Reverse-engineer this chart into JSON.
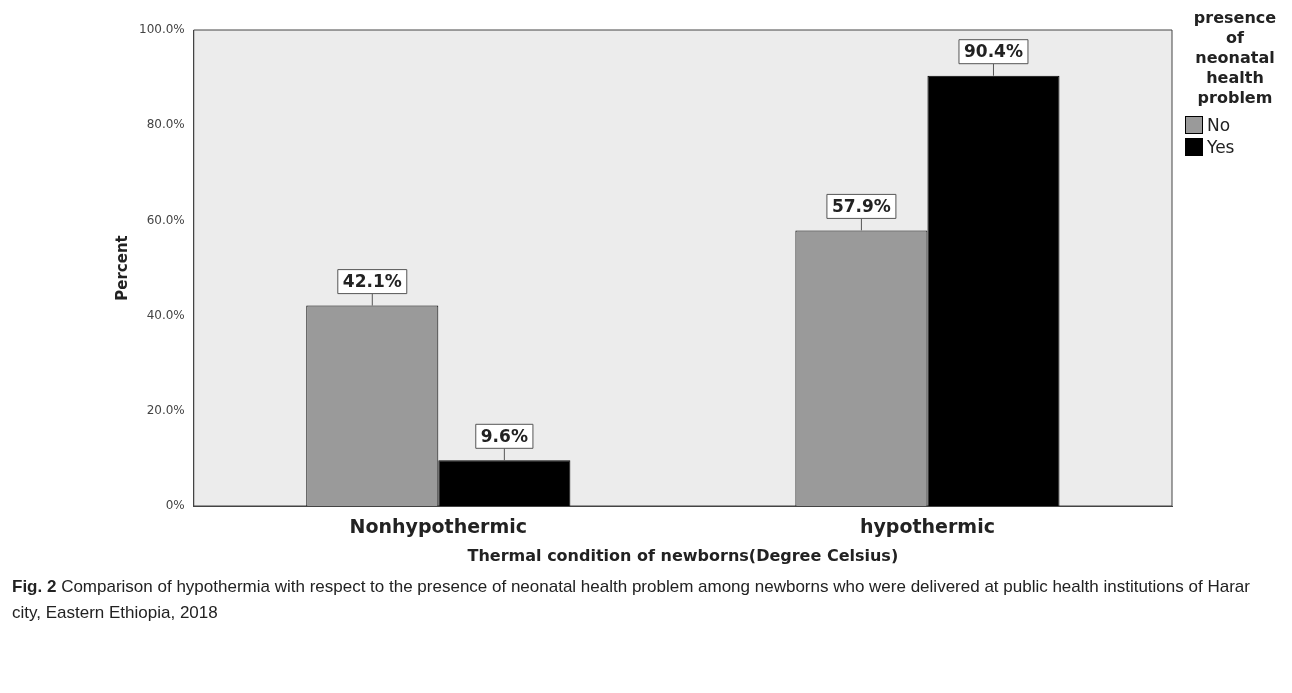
{
  "chart_data": {
    "type": "bar",
    "xlabel": "Thermal condition of newborns(Degree Celsius)",
    "ylabel": "Percent",
    "legend_title": "presence of neonatal health problem",
    "categories": [
      "Nonhypothermic",
      "hypothermic"
    ],
    "series": [
      {
        "name": "No",
        "color": "#9a9a9a",
        "values": [
          42.1,
          57.9
        ],
        "value_labels": [
          "42.1%",
          "57.9%"
        ]
      },
      {
        "name": "Yes",
        "color": "#000000",
        "values": [
          9.6,
          90.4
        ],
        "value_labels": [
          "9.6%",
          "90.4%"
        ]
      }
    ],
    "ylim": [
      0,
      100
    ],
    "yticks": [
      {
        "value": 0,
        "label": "0%"
      },
      {
        "value": 20,
        "label": "20.0%"
      },
      {
        "value": 40,
        "label": "40.0%"
      },
      {
        "value": 60,
        "label": "60.0%"
      },
      {
        "value": 80,
        "label": "80.0%"
      },
      {
        "value": 100,
        "label": "100.0%"
      }
    ],
    "grid": false,
    "legend": "top right",
    "annotations": [
      "Fig. 2 Comparison of hypothermia with respect to the presence of neonatal health problem among newborns who were delivered at public health institutions of Harar city, Eastern Ethiopia, 2018"
    ]
  }
}
